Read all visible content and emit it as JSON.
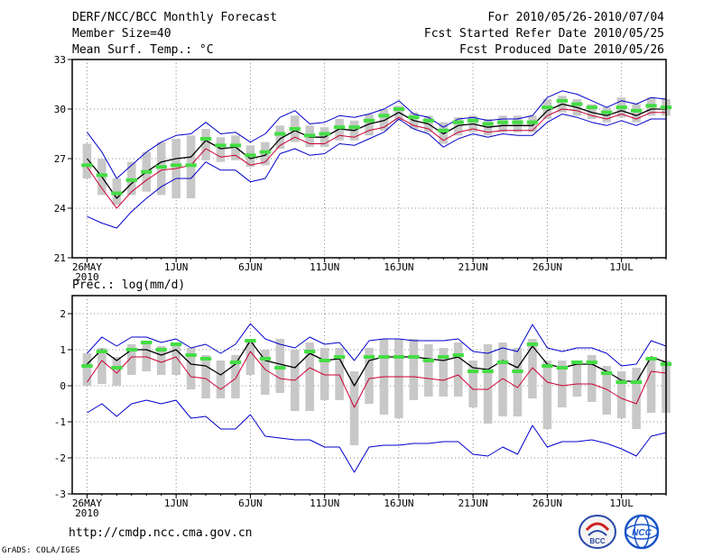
{
  "header": {
    "title": "DERF/NCC/BCC Monthly Forecast",
    "member": "Member Size=40",
    "variable": "Mean Surf. Temp.: °C",
    "period": "For 2010/05/26-2010/07/04",
    "started": "Fcst Started Refer Date 2010/05/25",
    "produced": "Fcst Produced Date 2010/05/26"
  },
  "footer": {
    "url": "http://cmdp.ncc.cma.gov.cn",
    "credit": "GrADS: COLA/IGES",
    "logo_left_text": "BCC",
    "logo_right_text": "NCC"
  },
  "colors": {
    "envelope": "#0000cc",
    "lower_red": "#cc0033",
    "mean": "#000000",
    "box": "#c8c8c8",
    "observed": "#44dd44",
    "grid": "#888888"
  },
  "chart_data": [
    {
      "type": "line",
      "title": "Mean Surf. Temp.: °C",
      "ylim": [
        21,
        33
      ],
      "yticks": [
        21,
        24,
        27,
        30,
        33
      ],
      "xlim": [
        -1,
        39
      ],
      "xticks": [
        {
          "day": 0,
          "label": "26MAY",
          "sub": "2010"
        },
        {
          "day": 6,
          "label": "1JUN"
        },
        {
          "day": 11,
          "label": "6JUN"
        },
        {
          "day": 16,
          "label": "11JUN"
        },
        {
          "day": 21,
          "label": "16JUN"
        },
        {
          "day": 26,
          "label": "21JUN"
        },
        {
          "day": 31,
          "label": "26JUN"
        },
        {
          "day": 36,
          "label": "1JUL"
        }
      ],
      "mean": [
        27.0,
        25.9,
        24.6,
        25.5,
        26.2,
        26.8,
        27.0,
        27.1,
        28.1,
        27.6,
        27.7,
        27.0,
        27.2,
        28.2,
        28.7,
        28.3,
        28.3,
        28.8,
        28.7,
        29.1,
        29.3,
        29.8,
        29.3,
        29.1,
        28.5,
        29.0,
        29.1,
        28.9,
        29.0,
        29.0,
        29.0,
        29.9,
        30.3,
        30.1,
        29.8,
        29.6,
        29.9,
        29.6,
        30.0,
        30.0
      ],
      "upper": [
        28.6,
        27.4,
        25.8,
        26.6,
        27.4,
        28.0,
        28.4,
        28.5,
        29.2,
        28.5,
        28.6,
        28.0,
        28.5,
        29.5,
        29.9,
        29.1,
        29.2,
        29.6,
        29.5,
        29.7,
        30.0,
        30.5,
        29.7,
        29.5,
        28.9,
        29.4,
        29.5,
        29.3,
        29.4,
        29.4,
        29.6,
        30.7,
        31.1,
        30.9,
        30.5,
        30.1,
        30.5,
        30.3,
        30.7,
        30.6
      ],
      "lower": [
        23.5,
        23.1,
        22.8,
        23.8,
        24.6,
        25.3,
        25.8,
        25.8,
        26.8,
        26.3,
        26.3,
        25.6,
        25.8,
        27.3,
        27.6,
        27.2,
        27.3,
        27.9,
        27.8,
        28.2,
        28.6,
        29.4,
        28.8,
        28.5,
        27.7,
        28.2,
        28.5,
        28.3,
        28.5,
        28.4,
        28.4,
        29.2,
        29.7,
        29.5,
        29.2,
        29.0,
        29.3,
        29.0,
        29.4,
        29.4
      ],
      "red": [
        26.5,
        25.2,
        24.0,
        25.0,
        25.7,
        26.3,
        26.4,
        26.6,
        27.6,
        27.1,
        27.2,
        26.6,
        26.8,
        27.8,
        28.3,
        27.9,
        27.9,
        28.4,
        28.3,
        28.7,
        28.9,
        29.5,
        29.0,
        28.8,
        28.1,
        28.6,
        28.8,
        28.6,
        28.7,
        28.7,
        28.7,
        29.6,
        30.0,
        29.9,
        29.6,
        29.4,
        29.7,
        29.4,
        29.8,
        29.8
      ],
      "box_low": [
        25.8,
        24.8,
        24.2,
        24.8,
        25.0,
        24.8,
        24.6,
        24.6,
        26.9,
        26.8,
        26.9,
        26.5,
        26.6,
        27.6,
        28.0,
        27.7,
        27.7,
        28.1,
        28.1,
        28.4,
        28.7,
        29.3,
        28.8,
        28.6,
        27.9,
        28.4,
        28.6,
        28.4,
        28.6,
        28.6,
        28.6,
        29.4,
        29.8,
        29.6,
        29.4,
        29.2,
        29.5,
        29.2,
        29.6,
        29.6
      ],
      "box_high": [
        27.9,
        27.0,
        25.8,
        26.8,
        27.4,
        28.0,
        28.2,
        28.4,
        28.8,
        28.3,
        28.4,
        27.8,
        28.0,
        29.0,
        29.6,
        29.0,
        28.9,
        29.4,
        29.3,
        29.7,
        30.0,
        30.2,
        29.8,
        29.6,
        29.2,
        29.5,
        29.6,
        29.4,
        29.6,
        29.6,
        29.6,
        30.6,
        30.8,
        30.6,
        30.3,
        30.1,
        30.7,
        30.3,
        30.7,
        30.6
      ],
      "observed": [
        26.6,
        26.0,
        24.9,
        25.7,
        26.2,
        26.5,
        26.6,
        26.6,
        28.2,
        27.8,
        27.8,
        27.2,
        27.4,
        28.5,
        28.8,
        28.4,
        28.5,
        28.9,
        28.9,
        29.3,
        29.6,
        30.0,
        29.5,
        29.3,
        28.7,
        29.2,
        29.3,
        29.1,
        29.2,
        29.2,
        29.2,
        30.1,
        30.5,
        30.3,
        30.1,
        29.8,
        30.1,
        29.9,
        30.2,
        30.1
      ]
    },
    {
      "type": "line",
      "title": "Prec.: log(mm/d)",
      "ylim": [
        -3,
        2.5
      ],
      "yticks": [
        -3,
        -2,
        -1,
        0,
        1,
        2
      ],
      "xlim": [
        -1,
        39
      ],
      "xticks": [
        {
          "day": 0,
          "label": "26MAY",
          "sub": "2010"
        },
        {
          "day": 6,
          "label": "1JUN"
        },
        {
          "day": 11,
          "label": "6JUN"
        },
        {
          "day": 16,
          "label": "11JUN"
        },
        {
          "day": 21,
          "label": "16JUN"
        },
        {
          "day": 26,
          "label": "21JUN"
        },
        {
          "day": 31,
          "label": "26JUN"
        },
        {
          "day": 36,
          "label": "1JUL"
        }
      ],
      "mean": [
        0.6,
        1.0,
        0.7,
        1.0,
        1.0,
        0.85,
        1.0,
        0.6,
        0.55,
        0.3,
        0.6,
        1.25,
        0.7,
        0.6,
        0.5,
        0.9,
        0.7,
        0.75,
        0.0,
        0.7,
        0.8,
        0.8,
        0.8,
        0.75,
        0.7,
        0.8,
        0.5,
        0.45,
        0.7,
        0.5,
        1.1,
        0.6,
        0.5,
        0.6,
        0.6,
        0.4,
        0.15,
        0.1,
        0.8,
        0.65
      ],
      "upper": [
        0.9,
        1.35,
        1.1,
        1.35,
        1.35,
        1.2,
        1.3,
        1.05,
        1.15,
        0.9,
        1.15,
        1.72,
        1.3,
        1.15,
        1.05,
        1.35,
        1.15,
        1.2,
        0.7,
        1.25,
        1.3,
        1.3,
        1.25,
        1.25,
        1.25,
        1.3,
        0.95,
        0.9,
        1.05,
        0.95,
        1.7,
        1.05,
        0.95,
        1.05,
        1.05,
        0.9,
        0.55,
        0.6,
        1.25,
        1.1
      ],
      "lower": [
        -0.75,
        -0.5,
        -0.85,
        -0.5,
        -0.4,
        -0.5,
        -0.4,
        -0.9,
        -0.85,
        -1.2,
        -1.2,
        -0.8,
        -1.4,
        -1.45,
        -1.5,
        -1.5,
        -1.7,
        -1.7,
        -2.4,
        -1.7,
        -1.65,
        -1.65,
        -1.6,
        -1.6,
        -1.55,
        -1.55,
        -1.9,
        -1.95,
        -1.7,
        -1.9,
        -1.1,
        -1.7,
        -1.55,
        -1.55,
        -1.5,
        -1.6,
        -1.75,
        -1.95,
        -1.4,
        -1.3
      ],
      "red": [
        0.1,
        0.7,
        0.35,
        0.8,
        0.8,
        0.65,
        0.8,
        0.25,
        0.2,
        -0.1,
        0.2,
        0.95,
        0.45,
        0.2,
        0.15,
        0.5,
        0.3,
        0.3,
        -0.6,
        0.2,
        0.25,
        0.25,
        0.25,
        0.2,
        0.15,
        0.3,
        -0.1,
        -0.1,
        0.2,
        -0.05,
        0.5,
        0.1,
        0.0,
        0.05,
        0.05,
        -0.1,
        -0.35,
        -0.5,
        0.4,
        0.35
      ],
      "box_low": [
        0.0,
        0.05,
        0.0,
        0.3,
        0.4,
        0.3,
        0.3,
        -0.1,
        -0.35,
        -0.35,
        -0.35,
        0.3,
        -0.25,
        -0.2,
        -0.7,
        -0.7,
        -0.4,
        -0.4,
        -1.65,
        -0.5,
        -0.8,
        -0.9,
        -0.4,
        -0.3,
        -0.3,
        -0.3,
        -0.6,
        -1.05,
        -0.85,
        -0.85,
        -0.35,
        -1.2,
        -0.6,
        -0.3,
        -0.45,
        -0.8,
        -0.9,
        -1.2,
        -0.75,
        -0.75
      ],
      "box_high": [
        0.9,
        1.05,
        0.8,
        1.15,
        1.15,
        1.1,
        1.15,
        1.05,
        0.85,
        0.7,
        0.85,
        1.3,
        1.0,
        1.3,
        1.0,
        1.2,
        1.05,
        1.05,
        0.4,
        1.05,
        1.3,
        1.3,
        1.3,
        1.15,
        1.05,
        1.2,
        0.7,
        1.15,
        1.2,
        1.05,
        1.3,
        0.7,
        0.7,
        0.7,
        0.85,
        0.55,
        0.4,
        0.5,
        0.75,
        0.7
      ],
      "observed": [
        0.55,
        0.95,
        0.5,
        1.0,
        1.2,
        1.0,
        1.15,
        0.85,
        0.75,
        null,
        0.65,
        1.25,
        0.75,
        0.5,
        null,
        0.95,
        0.7,
        0.8,
        null,
        0.8,
        0.8,
        0.8,
        0.8,
        0.7,
        0.8,
        0.85,
        0.4,
        0.4,
        0.65,
        0.4,
        1.15,
        0.55,
        0.5,
        0.65,
        0.65,
        0.35,
        0.1,
        0.1,
        0.75,
        0.6
      ]
    }
  ]
}
